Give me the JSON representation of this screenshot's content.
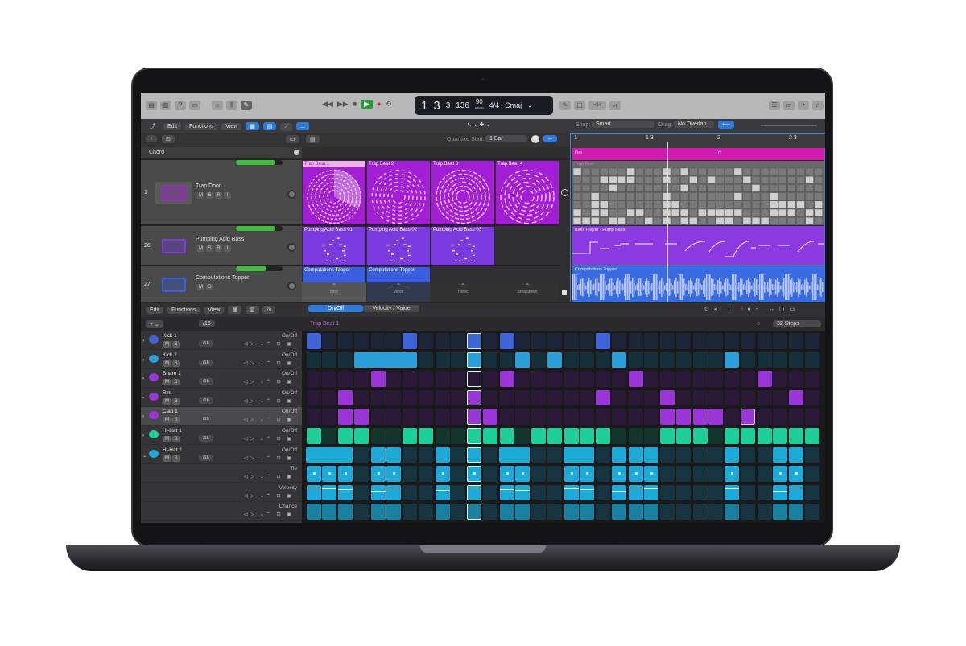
{
  "toolbar": {
    "transport": [
      "rewind",
      "fast-forward",
      "stop",
      "play",
      "record",
      "cycle"
    ],
    "lcd": {
      "bar": "1",
      "beat": "3",
      "division": "3",
      "tick": "136",
      "tempo": "90",
      "tempo_mode": "KEEP",
      "signature": "4/4",
      "key": "Cmaj"
    },
    "count_in": "≈34"
  },
  "tracks_bar": {
    "edit": "Edit",
    "functions": "Functions",
    "view": "View",
    "snap_label": "Snap:",
    "snap": "Smart",
    "drag_label": "Drag:",
    "drag": "No Overlap",
    "quantize_label": "Quantize Start:",
    "quantize": "1 Bar",
    "chord_label": "Chord"
  },
  "ruler": [
    "1",
    "1 3",
    "2",
    "2 3"
  ],
  "chords": [
    "Dm",
    "C"
  ],
  "tracks": [
    {
      "number": "1",
      "name": "Trap Door",
      "volume": 0.85,
      "buttons": [
        "M",
        "S",
        "R",
        "I"
      ],
      "color": "#a21fd6",
      "clips": [
        "Trap Beat 1",
        "Trap Beat 2",
        "Trap Beat 3",
        "Trap Beat 4"
      ],
      "region": "Trap Beat"
    },
    {
      "number": "26",
      "name": "Pumping Acid Bass",
      "volume": 0.85,
      "buttons": [
        "M",
        "S",
        "R",
        "I"
      ],
      "color": "#7a3ae0",
      "clips": [
        "Pumping Acid Bass 01",
        "Pumping Acid Bass 02",
        "Pumping Acid Bass 03"
      ],
      "region": "Bass Player - Pump Bass"
    },
    {
      "number": "27",
      "name": "Computations Topper",
      "volume": 0.65,
      "buttons": [
        "M",
        "S"
      ],
      "color": "#3a5ee0",
      "clips": [
        "Computations Topper",
        "Computations Topper"
      ],
      "region": "Computations Topper"
    }
  ],
  "scenes": [
    "Intro",
    "Verse",
    "Hook",
    "Breakdown"
  ],
  "step_sequencer": {
    "edit": "Edit",
    "functions": "Functions",
    "view": "View",
    "mode_on": "On/Off",
    "mode_value": "Velocity / Value",
    "pattern": "Trap Beat 1",
    "steps_label": "32 Steps",
    "resolution": "/16",
    "playhead_step": 10,
    "rows": [
      {
        "name": "Kick 1",
        "lane": "On/Off",
        "on": "#3f64d8",
        "off": "#1d2536",
        "steps": [
          0,
          6,
          10,
          12,
          18
        ],
        "ties": []
      },
      {
        "name": "Kick 2",
        "lane": "On/Off",
        "on": "#2a9ed8",
        "off": "#15303a",
        "steps": [
          3,
          4,
          5,
          6,
          10,
          13,
          15,
          19,
          26
        ],
        "ties": [
          [
            3,
            6
          ]
        ]
      },
      {
        "name": "Snare 1",
        "lane": "On/Off",
        "on": "#9a35d8",
        "off": "#2a1a38",
        "steps": [
          4,
          12,
          20,
          28
        ],
        "ties": []
      },
      {
        "name": "Rim",
        "lane": "On/Off",
        "on": "#9a35d8",
        "off": "#2a1a38",
        "steps": [
          2,
          10,
          18,
          22,
          30
        ],
        "ties": []
      },
      {
        "name": "Clap 1",
        "lane": "On/Off",
        "on": "#9a35d8",
        "off": "#2a1a38",
        "steps": [
          2,
          3,
          10,
          11,
          22,
          23,
          24,
          25,
          27
        ],
        "ties": []
      },
      {
        "name": "Hi-Hat 1",
        "lane": "On/Off",
        "on": "#1fcf9a",
        "off": "#12352c",
        "steps": [
          0,
          2,
          3,
          6,
          7,
          10,
          11,
          12,
          14,
          15,
          16,
          17,
          18,
          22,
          23,
          24,
          26,
          27,
          28,
          29,
          30,
          31
        ],
        "ties": []
      },
      {
        "name": "Hi-Hat 2",
        "lane": "On/Off",
        "on": "#1eaad8",
        "off": "#163540",
        "steps": [
          0,
          1,
          2,
          4,
          5,
          8,
          10,
          12,
          13,
          16,
          17,
          19,
          20,
          21,
          26,
          29,
          30
        ],
        "ties": [
          [
            0,
            2
          ],
          [
            12,
            13
          ],
          [
            16,
            17
          ]
        ]
      }
    ],
    "sub_lanes": [
      "Tie",
      "Velocity",
      "Chance"
    ]
  }
}
